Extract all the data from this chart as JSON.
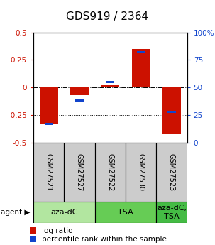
{
  "title": "GDS919 / 2364",
  "samples": [
    "GSM27521",
    "GSM27527",
    "GSM27522",
    "GSM27530",
    "GSM27523"
  ],
  "log_ratios": [
    -0.325,
    -0.07,
    0.022,
    0.352,
    -0.42
  ],
  "percentile_ranks": [
    17,
    38,
    55,
    82,
    28
  ],
  "agents": [
    {
      "label": "aza-dC",
      "sample_indices": [
        0,
        1
      ],
      "color": "#b2e6a0"
    },
    {
      "label": "TSA",
      "sample_indices": [
        2,
        3
      ],
      "color": "#66cc55"
    },
    {
      "label": "aza-dC,\nTSA",
      "sample_indices": [
        4
      ],
      "color": "#44bb44"
    }
  ],
  "ylim_left": [
    -0.5,
    0.5
  ],
  "ylim_right": [
    0,
    100
  ],
  "yticks_left": [
    -0.5,
    -0.25,
    0.0,
    0.25,
    0.5
  ],
  "yticks_right": [
    0,
    25,
    50,
    75,
    100
  ],
  "bar_width": 0.6,
  "bar_color_red": "#cc1100",
  "bar_color_blue": "#1144cc",
  "label_area_color": "#cccccc",
  "title_fontsize": 11,
  "tick_fontsize": 7.5,
  "legend_fontsize": 7.5,
  "sample_fontsize": 7,
  "agent_fontsize": 8
}
